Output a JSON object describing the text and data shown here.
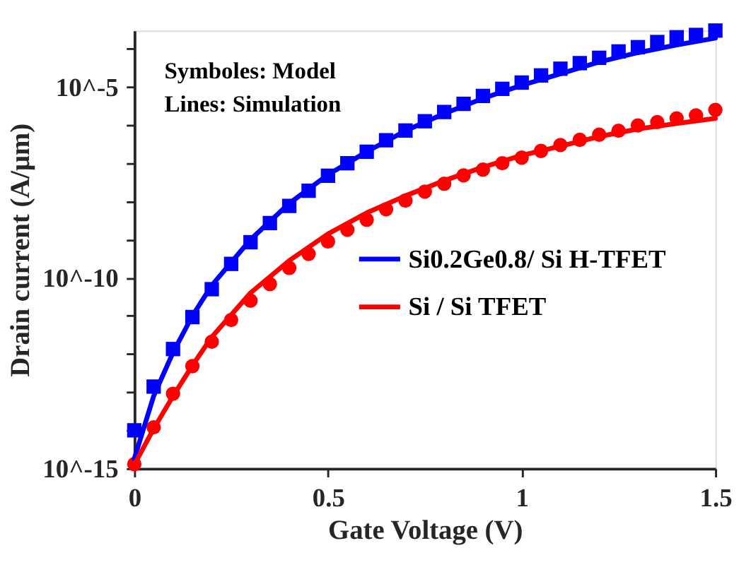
{
  "chart_data": {
    "type": "line",
    "xlabel": "Gate Voltage (V)",
    "ylabel": "Drain current (A/μm)",
    "log": "y",
    "xlim": [
      0,
      1.5
    ],
    "xticks": [
      0,
      0.5,
      1,
      1.5
    ],
    "ylim": [
      1e-15,
      0.0003
    ],
    "yticks": [
      {
        "value": 1e-15,
        "label": "10^-15"
      },
      {
        "value": 1e-14,
        "label": null
      },
      {
        "value": 1e-13,
        "label": null
      },
      {
        "value": 1e-12,
        "label": null
      },
      {
        "value": 1e-11,
        "label": null
      },
      {
        "value": 1e-10,
        "label": "10^-10"
      },
      {
        "value": 1e-09,
        "label": null
      },
      {
        "value": 1e-08,
        "label": null
      },
      {
        "value": 1e-07,
        "label": null
      },
      {
        "value": 1e-06,
        "label": null
      },
      {
        "value": 1e-05,
        "label": "10^-5"
      },
      {
        "value": 0.0001,
        "label": null
      }
    ],
    "grid": false,
    "legend": "right",
    "annotations": [
      "Symboles: Model",
      "Lines: Simulation"
    ],
    "series": [
      {
        "type": "scatter",
        "marker": "square",
        "color": "#0000ff",
        "x": [
          0,
          0.05,
          0.1,
          0.15,
          0.2,
          0.25,
          0.3,
          0.35,
          0.4,
          0.45,
          0.5,
          0.55,
          0.6,
          0.65,
          0.7,
          0.75,
          0.8,
          0.85,
          0.9,
          0.95,
          1.0,
          1.05,
          1.1,
          1.15,
          1.2,
          1.25,
          1.3,
          1.35,
          1.4,
          1.45,
          1.5
        ],
        "values": [
          1e-14,
          1.4e-13,
          1.35e-12,
          9.3e-12,
          5e-11,
          2.3e-10,
          8.5e-10,
          2.7e-09,
          7.6e-09,
          1.9e-08,
          4.7e-08,
          1e-07,
          2e-07,
          4e-07,
          7.2e-07,
          1.26e-06,
          2.2e-06,
          3.6e-06,
          5.8e-06,
          8.9e-06,
          1.3e-05,
          2e-05,
          3e-05,
          4.2e-05,
          5.8e-05,
          8.5e-05,
          0.00011,
          0.00015,
          0.0002,
          0.00023,
          0.0003
        ]
      },
      {
        "type": "scatter",
        "marker": "circle",
        "color": "#ff0000",
        "x": [
          0,
          0.05,
          0.1,
          0.15,
          0.2,
          0.25,
          0.3,
          0.35,
          0.4,
          0.45,
          0.5,
          0.55,
          0.6,
          0.65,
          0.7,
          0.75,
          0.8,
          0.85,
          0.9,
          0.95,
          1.0,
          1.05,
          1.1,
          1.15,
          1.2,
          1.25,
          1.3,
          1.35,
          1.4,
          1.45,
          1.5
        ],
        "values": [
          1.3e-15,
          1.2e-14,
          9.1e-14,
          4.8e-13,
          2.1e-12,
          7.8e-12,
          2.5e-11,
          6.8e-11,
          1.8e-10,
          4.2e-10,
          8.9e-10,
          1.8e-09,
          3.3e-09,
          6.2e-09,
          1.05e-08,
          1.8e-08,
          2.9e-08,
          4.8e-08,
          6.8e-08,
          1e-07,
          1.4e-07,
          2.1e-07,
          3e-07,
          4.1e-07,
          5.6e-07,
          7.1e-07,
          9.8e-07,
          1.2e-06,
          1.5e-06,
          1.8e-06,
          2.5e-06
        ]
      },
      {
        "type": "line",
        "name": "Si0.2Ge0.8/ Si H-TFET",
        "color": "#0000ff",
        "line_style": "solid",
        "x": [
          0,
          0.05,
          0.1,
          0.15,
          0.2,
          0.3,
          0.4,
          0.5,
          0.6,
          0.7,
          0.8,
          0.9,
          1.0,
          1.1,
          1.2,
          1.3,
          1.4,
          1.5
        ],
        "values": [
          1.8e-15,
          7.9e-14,
          1.1e-12,
          1e-11,
          6.3e-11,
          1e-09,
          8.9e-09,
          5e-08,
          2e-07,
          7.1e-07,
          2e-06,
          5e-06,
          1.1e-05,
          2.2e-05,
          4.5e-05,
          7.9e-05,
          0.000126,
          0.00019
        ]
      },
      {
        "type": "line",
        "name": "Si / Si TFET",
        "color": "#ff0000",
        "line_style": "solid",
        "x": [
          0,
          0.05,
          0.1,
          0.15,
          0.2,
          0.3,
          0.4,
          0.5,
          0.6,
          0.7,
          0.8,
          0.9,
          1.0,
          1.1,
          1.2,
          1.3,
          1.4,
          1.5
        ],
        "values": [
          1.26e-15,
          1.1e-14,
          7.9e-14,
          5e-13,
          2.8e-12,
          4e-11,
          2.8e-10,
          1.4e-09,
          5e-09,
          1.4e-08,
          3.5e-08,
          7.9e-08,
          1.6e-07,
          2.8e-07,
          5e-07,
          7.9e-07,
          1.1e-06,
          1.5e-06
        ]
      }
    ]
  }
}
